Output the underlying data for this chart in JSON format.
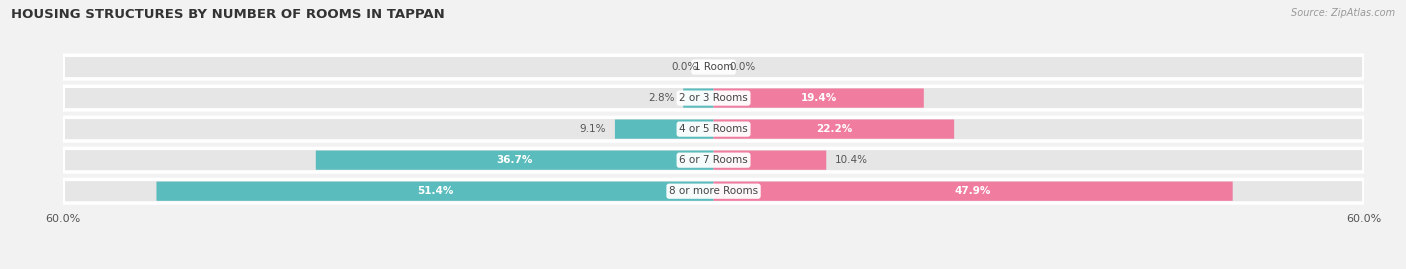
{
  "title": "HOUSING STRUCTURES BY NUMBER OF ROOMS IN TAPPAN",
  "source": "Source: ZipAtlas.com",
  "categories": [
    "1 Room",
    "2 or 3 Rooms",
    "4 or 5 Rooms",
    "6 or 7 Rooms",
    "8 or more Rooms"
  ],
  "owner_values": [
    0.0,
    2.8,
    9.1,
    36.7,
    51.4
  ],
  "renter_values": [
    0.0,
    19.4,
    22.2,
    10.4,
    47.9
  ],
  "owner_color": "#5bbcbd",
  "renter_color": "#f07ca0",
  "axis_max": 60.0,
  "background_color": "#f2f2f2",
  "row_bg_color": "#e6e6e6",
  "row_bg_edge": "#ffffff",
  "bar_height": 0.62,
  "inside_label_threshold": 12.0,
  "title_fontsize": 9.5,
  "label_fontsize": 7.5,
  "cat_fontsize": 7.5,
  "legend_fontsize": 8.0,
  "axis_label_fontsize": 8.0
}
